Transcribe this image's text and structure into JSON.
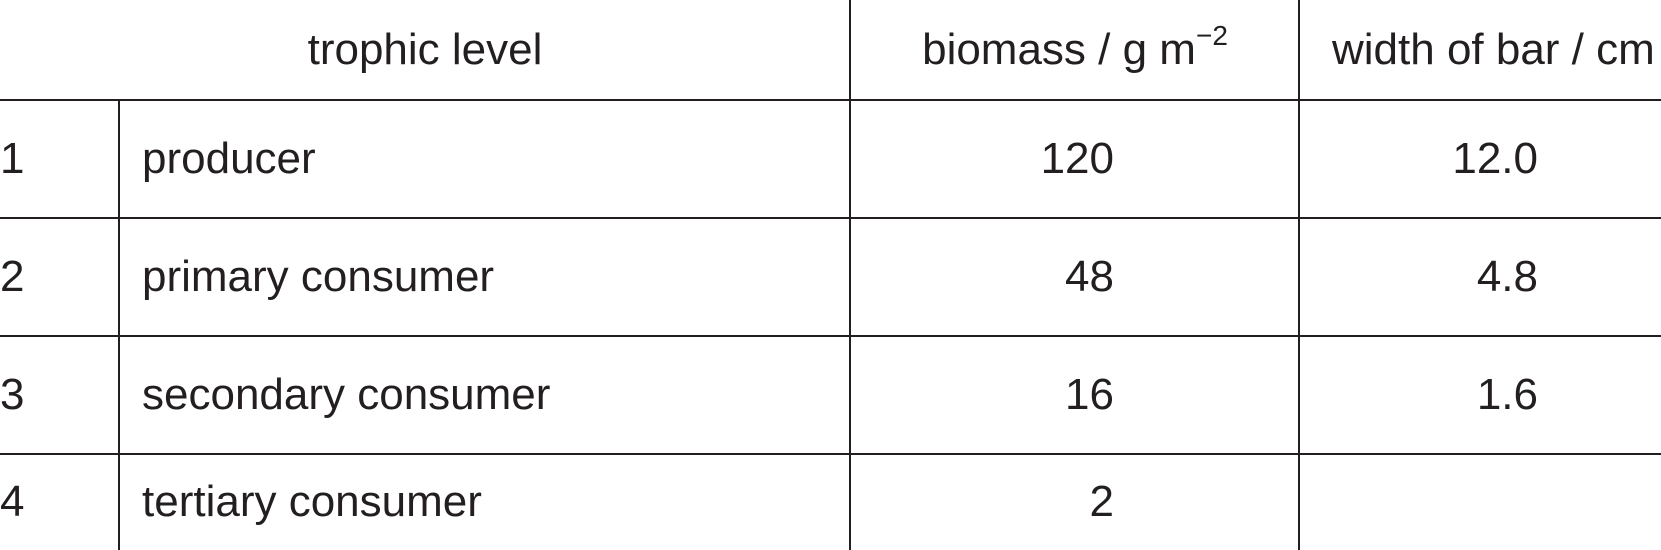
{
  "table": {
    "headers": {
      "trophic_level": "trophic level",
      "biomass": "biomass / g m",
      "biomass_exponent": "−2",
      "width_of_bar": "width of bar / cm"
    },
    "rows": [
      {
        "level": "1",
        "name": "producer",
        "biomass": "120",
        "width": "12.0"
      },
      {
        "level": "2",
        "name": "primary consumer",
        "biomass": "48",
        "width": "4.8"
      },
      {
        "level": "3",
        "name": "secondary consumer",
        "biomass": "16",
        "width": "1.6"
      },
      {
        "level": "4",
        "name": "tertiary consumer",
        "biomass": "2",
        "width": ""
      }
    ]
  }
}
